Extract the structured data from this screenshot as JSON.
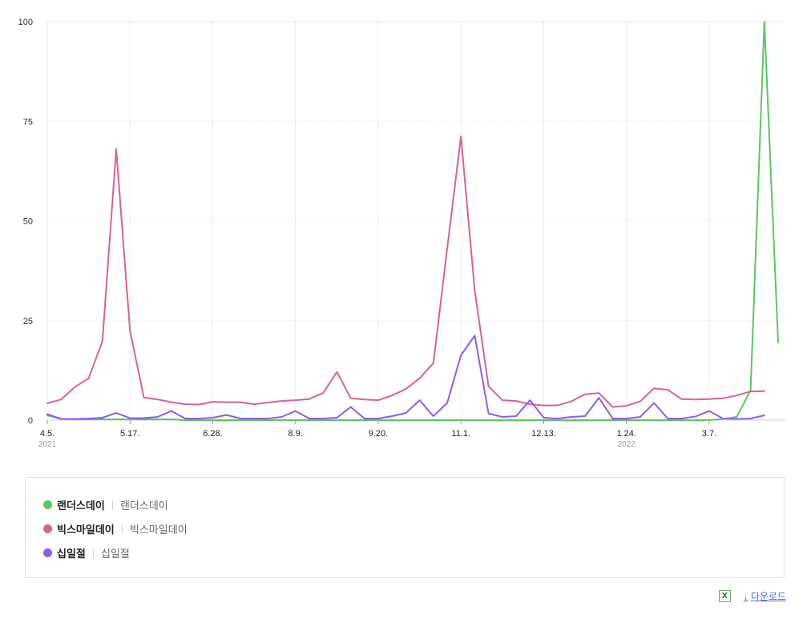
{
  "chart_data": {
    "type": "line",
    "ylim": [
      0,
      100
    ],
    "yticks": [
      0,
      25,
      50,
      75,
      100
    ],
    "ytick_labels": [
      "0",
      "25",
      "50",
      "75",
      "100"
    ],
    "grid": true,
    "legend_placement": "bottom",
    "x_labels": [
      {
        "index": 0,
        "label": "4.5.",
        "year": "2021"
      },
      {
        "index": 6,
        "label": "5.17.",
        "year": ""
      },
      {
        "index": 12,
        "label": "6.28.",
        "year": ""
      },
      {
        "index": 18,
        "label": "8.9.",
        "year": ""
      },
      {
        "index": 24,
        "label": "9.20.",
        "year": ""
      },
      {
        "index": 30,
        "label": "11.1.",
        "year": ""
      },
      {
        "index": 36,
        "label": "12.13.",
        "year": ""
      },
      {
        "index": 42,
        "label": "1.24.",
        "year": "2022"
      },
      {
        "index": 48,
        "label": "3.7.",
        "year": ""
      }
    ],
    "series": [
      {
        "name": "랜더스데이",
        "color": "#5bc760",
        "values": [
          1.2,
          0.3,
          0.2,
          0.2,
          0.2,
          0.2,
          0.2,
          0.2,
          0.2,
          0.2,
          0,
          0,
          0,
          0,
          0,
          0,
          0,
          0,
          0,
          0,
          0,
          0,
          0,
          0,
          0,
          0,
          0,
          0,
          0,
          0,
          0,
          0,
          0,
          0,
          0,
          0,
          0,
          0,
          0,
          0,
          0,
          0,
          0,
          0,
          0,
          0,
          0,
          0,
          0,
          0.3,
          0.8,
          7.5,
          100,
          19.5
        ]
      },
      {
        "name": "빅스마일데이",
        "color": "#d9609a",
        "values": [
          4.2,
          5.2,
          8.3,
          10.5,
          19.8,
          68,
          22.5,
          5.7,
          5.2,
          4.5,
          4.0,
          3.9,
          4.6,
          4.5,
          4.5,
          4.0,
          4.4,
          4.8,
          5.0,
          5.3,
          6.8,
          12.1,
          5.5,
          5.2,
          5.0,
          6.2,
          7.8,
          10.5,
          14.3,
          43,
          71.2,
          32.5,
          8.5,
          5.0,
          4.8,
          4.0,
          3.7,
          3.7,
          4.7,
          6.5,
          6.8,
          3.3,
          3.6,
          4.7,
          8.0,
          7.6,
          5.3,
          5.2,
          5.3,
          5.5,
          6.2,
          7.2,
          7.3
        ]
      },
      {
        "name": "십일절",
        "color": "#8c5cef",
        "values": [
          1.5,
          0.3,
          0.3,
          0.4,
          0.6,
          1.8,
          0.5,
          0.5,
          0.8,
          2.3,
          0.4,
          0.4,
          0.6,
          1.3,
          0.4,
          0.4,
          0.4,
          0.8,
          2.3,
          0.4,
          0.4,
          0.6,
          3.3,
          0.4,
          0.4,
          1.0,
          1.8,
          5.0,
          1.0,
          4.3,
          16.3,
          21.2,
          1.7,
          0.8,
          1.0,
          5.0,
          0.6,
          0.4,
          0.8,
          1.0,
          5.6,
          0.4,
          0.4,
          0.8,
          4.3,
          0.4,
          0.4,
          0.9,
          2.3,
          0.4,
          0.3,
          0.4,
          1.2
        ]
      }
    ]
  },
  "legend": {
    "items": [
      {
        "name": "랜더스데이",
        "keyword": "랜더스데이",
        "color": "#5bc760"
      },
      {
        "name": "빅스마일데이",
        "keyword": "빅스마일데이",
        "color": "#d9609a"
      },
      {
        "name": "십일절",
        "keyword": "십일절",
        "color": "#8c5cef"
      }
    ],
    "separator": "|"
  },
  "footer": {
    "excel_icon": "excel-icon",
    "excel_glyph": "X",
    "download_arrow": "↓",
    "download_label": "다운로드"
  }
}
